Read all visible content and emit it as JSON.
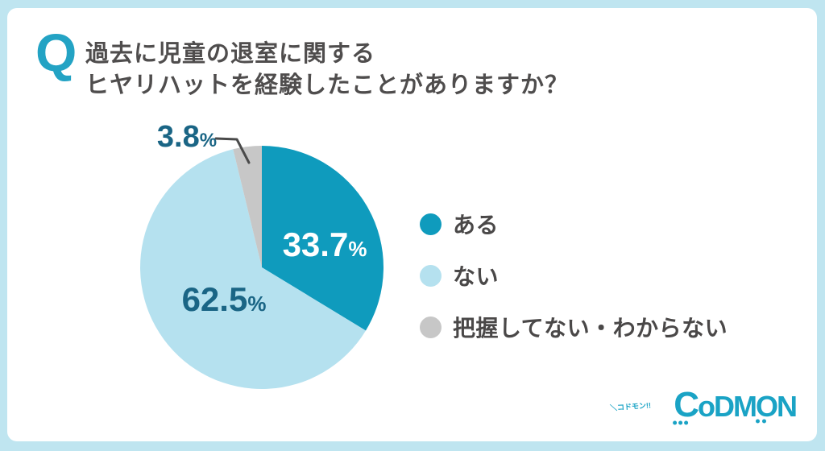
{
  "page": {
    "background": "#bfe5f0",
    "card_background": "#ffffff"
  },
  "question": {
    "q_mark": "Q",
    "title_line1": "過去に児童の退室に関する",
    "title_line2": "ヒヤリハットを経験したことがありますか？"
  },
  "chart_data": {
    "type": "pie",
    "title": "過去に児童の退室に関するヒヤリハットを経験したことがありますか？",
    "labels": [
      "ある",
      "ない",
      "把握してない・わからない"
    ],
    "values": [
      33.7,
      62.5,
      3.8
    ],
    "value_labels": [
      "33.7%",
      "62.5%",
      "3.8%"
    ],
    "colors": [
      "#0f9bbd",
      "#b5e1ef",
      "#c7c7c7"
    ],
    "label_text_colors": [
      "#ffffff",
      "#1a6585",
      "#1a6585"
    ],
    "start_angle": "top",
    "direction": "clockwise",
    "legend_position": "right",
    "total": 100.0
  },
  "slice_labels": [
    {
      "value": "33.7",
      "unit": "%"
    },
    {
      "value": "62.5",
      "unit": "%"
    },
    {
      "value": "3.8",
      "unit": "%"
    }
  ],
  "legend": {
    "items": [
      {
        "label": "ある",
        "color": "#0f9bbd"
      },
      {
        "label": "ない",
        "color": "#b5e1ef"
      },
      {
        "label": "把握してない・わからない",
        "color": "#c7c7c7"
      }
    ]
  },
  "logo": {
    "kana": "＼コドモン!!",
    "c": "C",
    "o": "o",
    "dm": "DM",
    "big_o": "O",
    "n": "N",
    "color": "#1aa3c5"
  },
  "colors": {
    "q_teal": "#23a3c4",
    "title_gray": "#4f4d4d",
    "label_blue": "#1a6585",
    "leader_line": "#4a4a4a"
  }
}
